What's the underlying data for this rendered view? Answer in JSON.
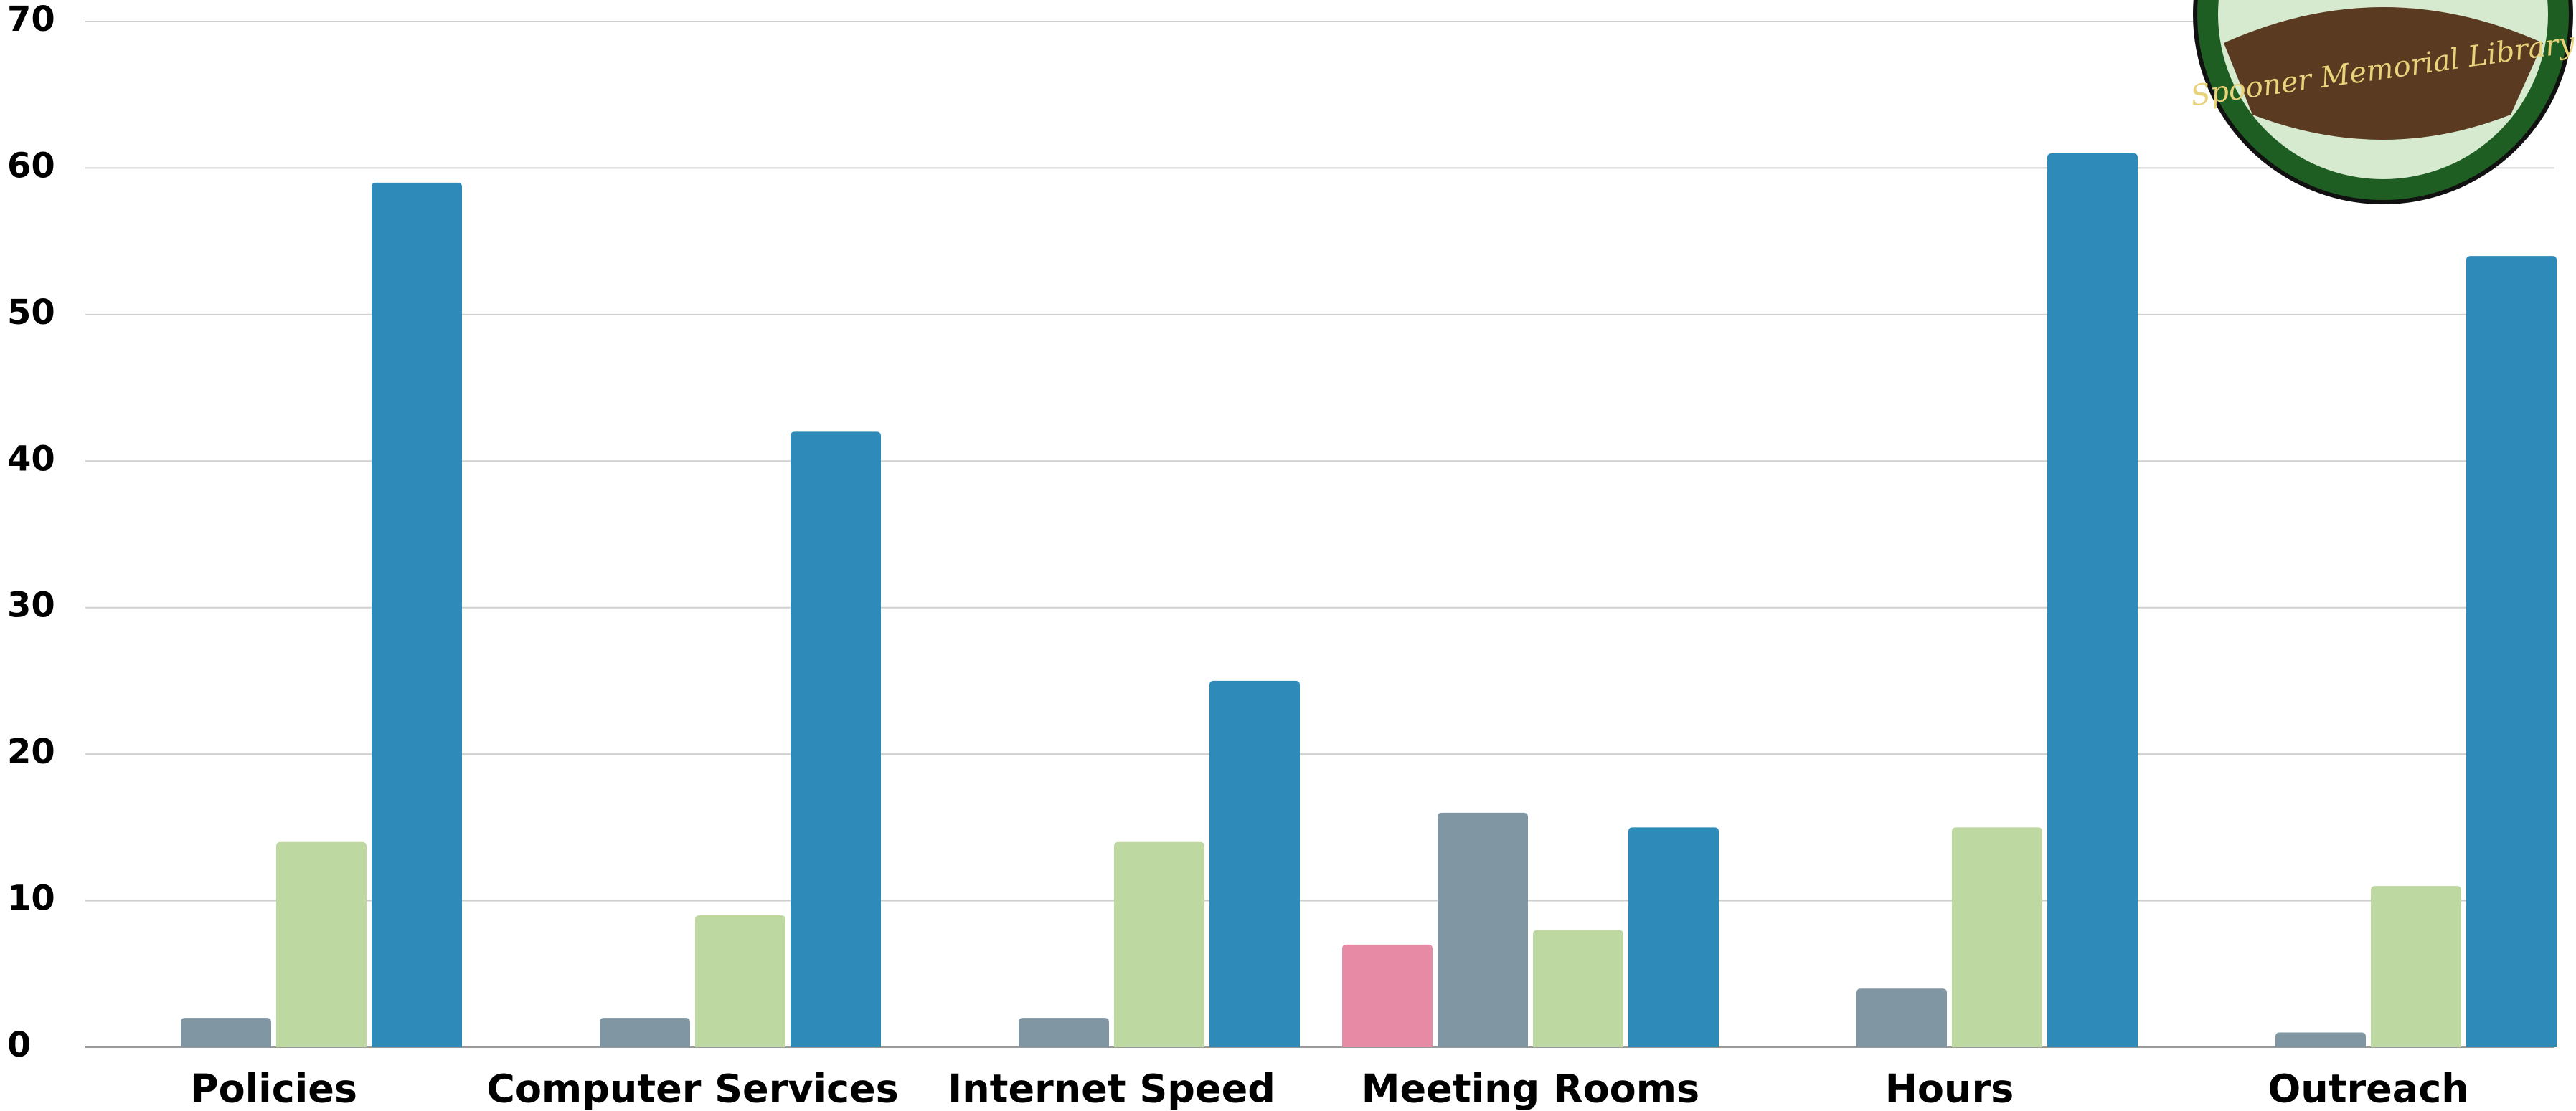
{
  "chart_data": {
    "type": "bar",
    "categories": [
      "Policies",
      "Computer Services",
      "Internet Speed",
      "Meeting Rooms",
      "Hours",
      "Outreach"
    ],
    "series": [
      {
        "color": "#e68aa5",
        "values": [
          0,
          0,
          0,
          7,
          0,
          0
        ]
      },
      {
        "color": "#8196a3",
        "values": [
          2,
          2,
          2,
          16,
          4,
          1
        ]
      },
      {
        "color": "#bed8a2",
        "values": [
          14,
          9,
          14,
          8,
          15,
          11
        ]
      },
      {
        "color": "#2d8ab9",
        "values": [
          59,
          42,
          25,
          15,
          61,
          54
        ]
      }
    ],
    "ylim": [
      0,
      70
    ],
    "yticks": [
      0,
      10,
      20,
      30,
      40,
      50,
      60,
      70
    ],
    "grid": true
  },
  "logo_text": "Spooner Memorial Library"
}
